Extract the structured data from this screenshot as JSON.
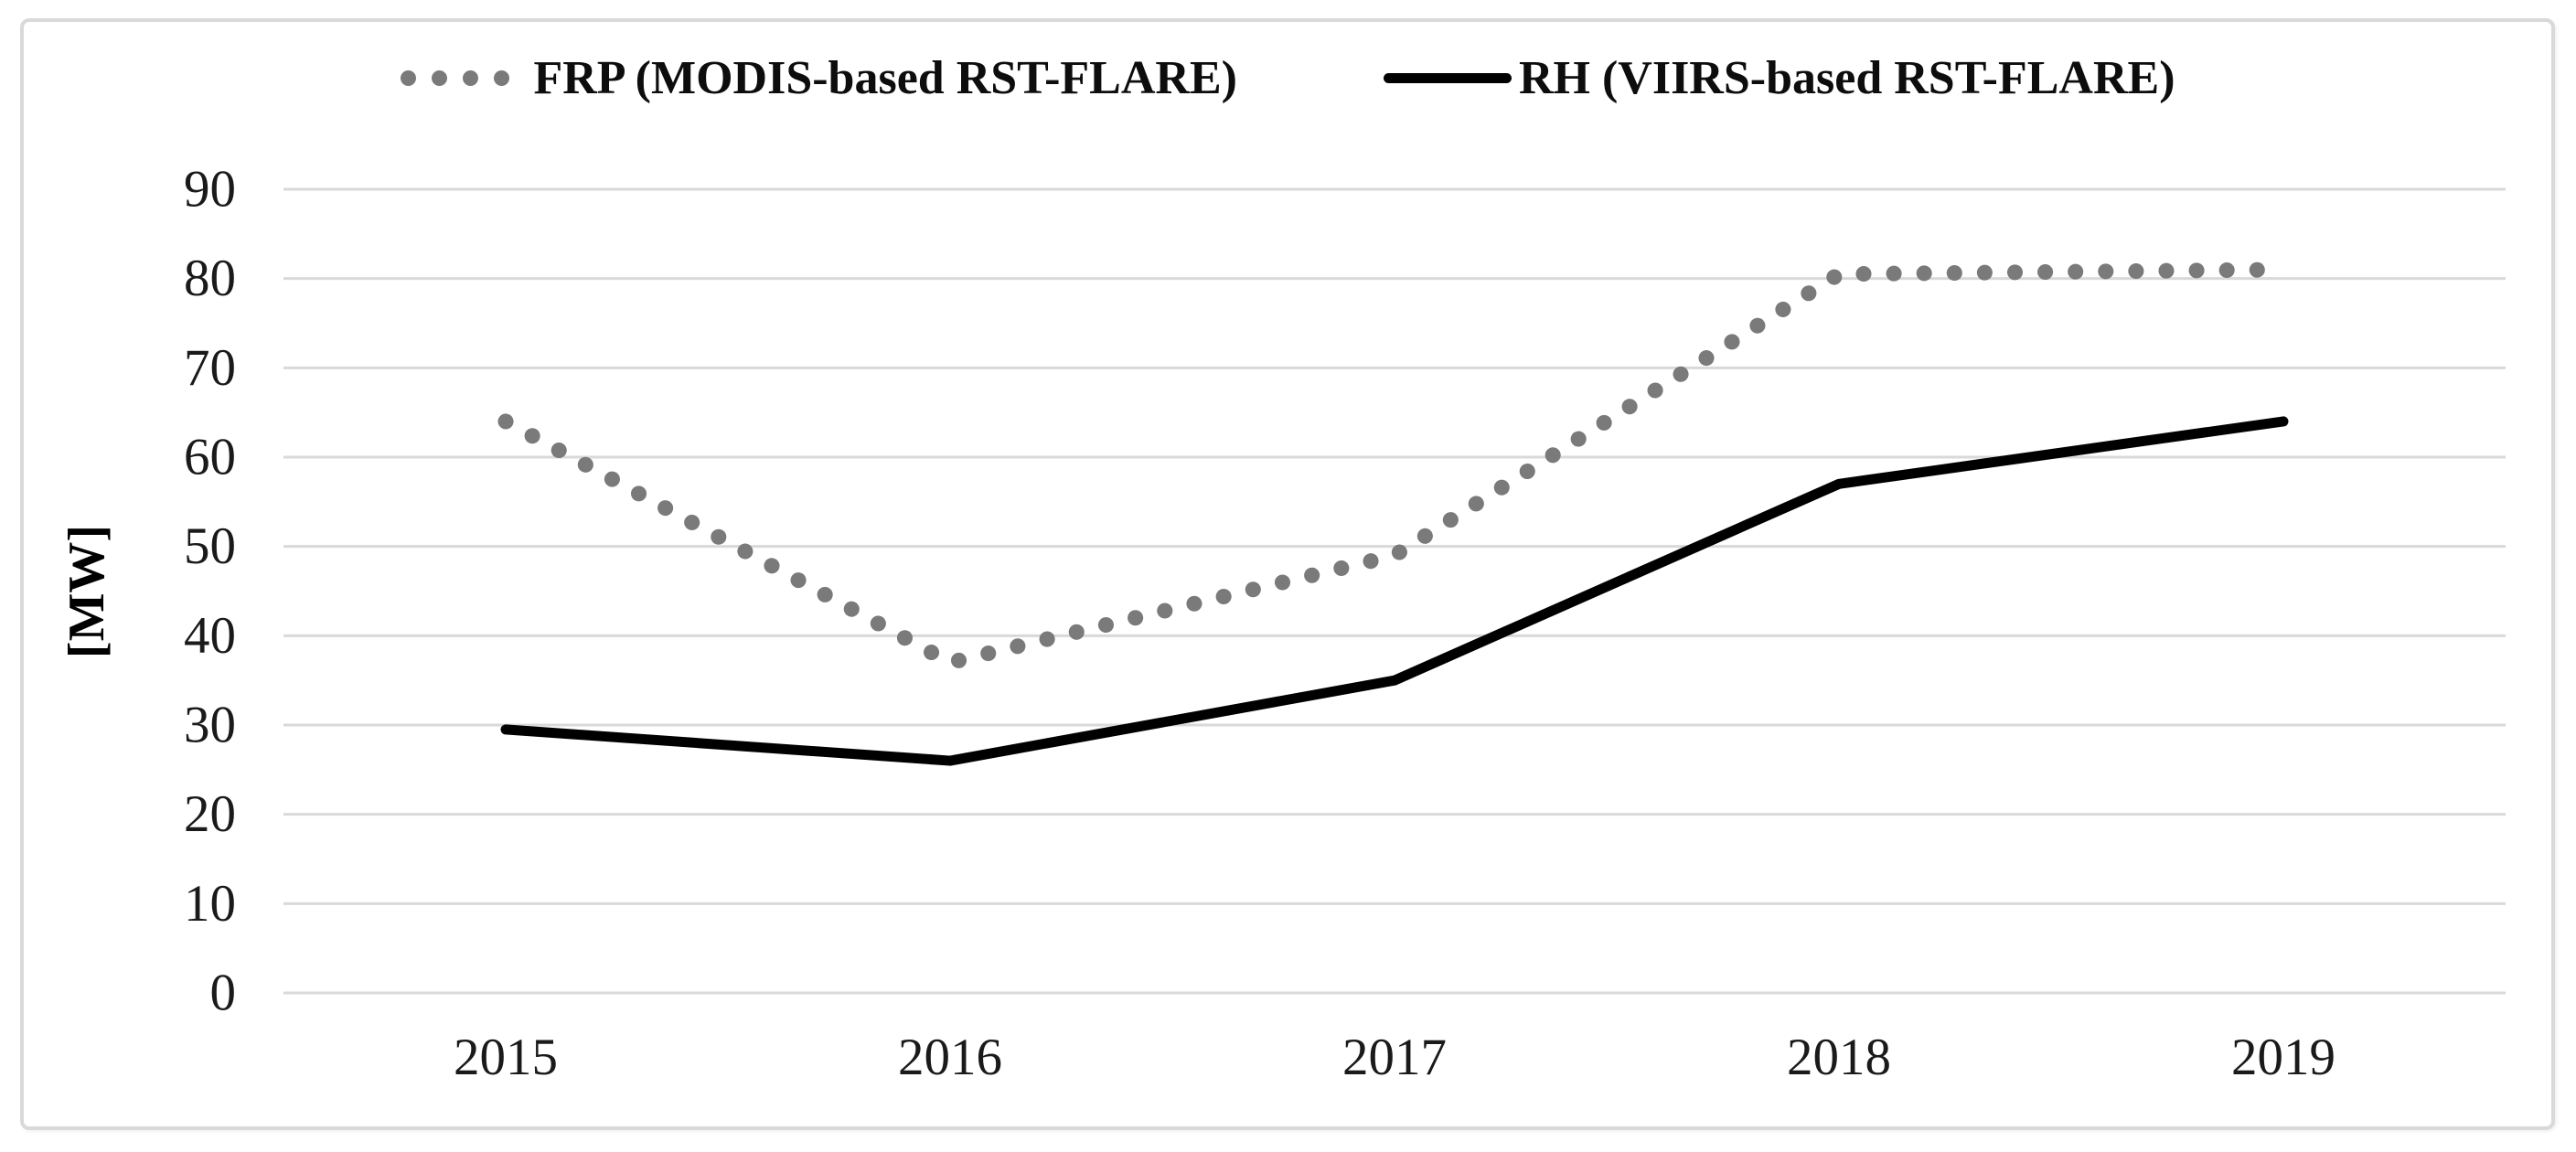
{
  "chart_data": {
    "type": "line",
    "categories": [
      "2015",
      "2016",
      "2017",
      "2018",
      "2019"
    ],
    "series": [
      {
        "name": "FRP (MODIS-based RST-FLARE)",
        "style": "dotted",
        "color": "#7a7a7a",
        "values": [
          64,
          37,
          49,
          80.5,
          81
        ]
      },
      {
        "name": "RH (VIIRS-based RST-FLARE)",
        "style": "solid",
        "color": "#000000",
        "values": [
          29.5,
          26,
          35,
          57,
          64
        ]
      }
    ],
    "title": "",
    "xlabel": "",
    "ylabel": "[MW]",
    "ylim": [
      0,
      90
    ],
    "y_ticks": [
      0,
      10,
      20,
      30,
      40,
      50,
      60,
      70,
      80,
      90
    ],
    "grid": true,
    "legend_position": "top",
    "gridline_color": "#d9d9d9"
  }
}
